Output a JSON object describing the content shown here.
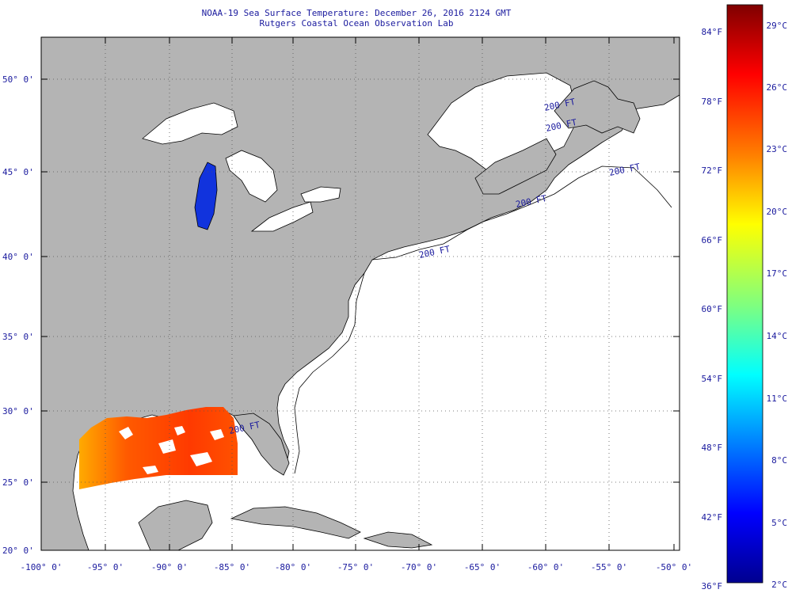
{
  "header": {
    "title": "NOAA-19 Sea Surface Temperature:  December 26, 2016 2124 GMT",
    "subtitle": "Rutgers Coastal Ocean Observation Lab"
  },
  "map": {
    "lat_labels": [
      "50° 0'",
      "45° 0'",
      "40° 0'",
      "35° 0'",
      "30° 0'",
      "25° 0'",
      "20° 0'"
    ],
    "lon_labels": [
      "-100° 0'",
      "-95° 0'",
      "-90° 0'",
      "-85° 0'",
      "-80° 0'",
      "-75° 0'",
      "-70° 0'",
      "-65° 0'",
      "-60° 0'",
      "-55° 0'",
      "-50° 0'"
    ],
    "isobath_labels": [
      "200 FT",
      "200 FT",
      "200 FT",
      "200 FT",
      "200 FT",
      "200 FT"
    ],
    "colors": {
      "land": "#b4b4b4",
      "ocean": "#ffffff",
      "grid": "#555555",
      "coast": "#000000"
    }
  },
  "colorbar": {
    "fahrenheit_labels": [
      "84°F",
      "78°F",
      "72°F",
      "66°F",
      "60°F",
      "54°F",
      "48°F",
      "42°F",
      "36°F"
    ],
    "celsius_labels": [
      "29°C",
      "26°C",
      "23°C",
      "20°C",
      "17°C",
      "14°C",
      "11°C",
      "8°C",
      "5°C",
      "2°C"
    ],
    "range_celsius": [
      2,
      30
    ],
    "colors": [
      "#7f0000",
      "#ff0000",
      "#ff7f00",
      "#ffff00",
      "#7fff7f",
      "#00ffff",
      "#007fff",
      "#0000ff",
      "#00008f"
    ]
  }
}
